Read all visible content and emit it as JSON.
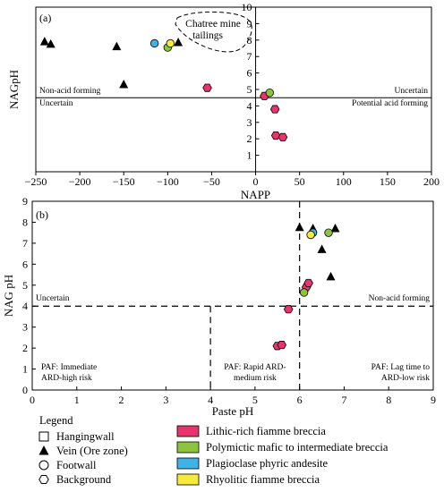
{
  "chart_data": [
    {
      "type": "scatter",
      "panel_label": "(a)",
      "xlabel": "NAPP",
      "ylabel": "NAGpH",
      "xlim": [
        -250,
        200
      ],
      "ylim": [
        0,
        10
      ],
      "xticks": [
        "−250",
        "−200",
        "−150",
        "−100",
        "−50",
        "0",
        "50",
        "100",
        "150",
        "200"
      ],
      "xtick_values": [
        -250,
        -200,
        -150,
        -100,
        -50,
        0,
        50,
        100,
        150,
        200
      ],
      "yticks": [
        "1",
        "2",
        "3",
        "4",
        "5",
        "6",
        "7",
        "8",
        "9",
        "10"
      ],
      "ytick_values": [
        1,
        2,
        3,
        4,
        5,
        6,
        7,
        8,
        9,
        10
      ],
      "grid": false,
      "reference_lines": {
        "x": 0,
        "y": 4.5
      },
      "zone_labels": {
        "top_left": "Non-acid forming",
        "bottom_left": "Uncertain",
        "top_right": "Uncertain",
        "bottom_right": "Potential acid forming"
      },
      "annotation": [
        "Chatree mine",
        "tailings"
      ],
      "series": [
        {
          "lithology": "vein",
          "marker": "triangle",
          "color": "#000000",
          "points": [
            [
              -240,
              7.9
            ],
            [
              -233,
              7.75
            ],
            [
              -158,
              7.6
            ],
            [
              -150,
              5.3
            ],
            [
              -88,
              7.85
            ]
          ]
        },
        {
          "lithology": "lithic",
          "marker": "hexagon",
          "color": "#e8336d",
          "points": [
            [
              -55,
              5.1
            ],
            [
              10,
              4.6
            ],
            [
              22,
              3.8
            ],
            [
              23,
              2.2
            ],
            [
              31,
              2.1
            ]
          ]
        },
        {
          "lithology": "polymictic",
          "marker": "circle",
          "color": "#8cc43f",
          "points": [
            [
              -100,
              7.55
            ],
            [
              16,
              4.8
            ]
          ]
        },
        {
          "lithology": "plagioclase",
          "marker": "circle",
          "color": "#3fb3e5",
          "points": [
            [
              -115,
              7.8
            ]
          ]
        },
        {
          "lithology": "rhyolitic",
          "marker": "circle",
          "color": "#f5ea3c",
          "points": [
            [
              -97,
              7.8
            ]
          ]
        }
      ]
    },
    {
      "type": "scatter",
      "panel_label": "(b)",
      "xlabel": "Paste pH",
      "ylabel": "NAG pH",
      "xlim": [
        0,
        9
      ],
      "ylim": [
        0,
        9
      ],
      "xticks": [
        "0",
        "1",
        "2",
        "3",
        "4",
        "5",
        "6",
        "7",
        "8",
        "9"
      ],
      "xtick_values": [
        0,
        1,
        2,
        3,
        4,
        5,
        6,
        7,
        8,
        9
      ],
      "yticks": [
        "0",
        "1",
        "2",
        "3",
        "4",
        "5",
        "6",
        "7",
        "8",
        "9"
      ],
      "ytick_values": [
        0,
        1,
        2,
        3,
        4,
        5,
        6,
        7,
        8,
        9
      ],
      "grid": false,
      "reference_lines": {
        "x_full": 6,
        "y": 4,
        "x_partial": 4
      },
      "zone_labels": {
        "top_left": "Uncertain",
        "top_right": "Non-acid forming",
        "bottom_left": [
          "PAF: Immediate",
          "ARD-high risk"
        ],
        "bottom_middle": [
          "PAF: Rapid ARD-",
          "medium risk"
        ],
        "bottom_right": [
          "PAF: Lag time to",
          "ARD-low risk"
        ]
      },
      "series": [
        {
          "lithology": "vein",
          "marker": "triangle",
          "color": "#000000",
          "points": [
            [
              6.0,
              7.75
            ],
            [
              6.3,
              7.7
            ],
            [
              6.8,
              7.7
            ],
            [
              6.5,
              6.7
            ],
            [
              6.7,
              5.4
            ]
          ]
        },
        {
          "lithology": "lithic",
          "marker": "hexagon",
          "color": "#e8336d",
          "points": [
            [
              5.75,
              3.85
            ],
            [
              6.15,
              4.9
            ],
            [
              6.2,
              5.1
            ],
            [
              5.5,
              2.1
            ],
            [
              5.6,
              2.15
            ]
          ]
        },
        {
          "lithology": "polymictic",
          "marker": "circle",
          "color": "#8cc43f",
          "points": [
            [
              6.1,
              4.65
            ],
            [
              6.65,
              7.5
            ]
          ]
        },
        {
          "lithology": "plagioclase",
          "marker": "circle",
          "color": "#3fb3e5",
          "points": [
            [
              6.3,
              7.5
            ]
          ]
        },
        {
          "lithology": "rhyolitic",
          "marker": "circle",
          "color": "#f5ea3c",
          "points": [
            [
              6.25,
              7.4
            ]
          ]
        }
      ]
    }
  ],
  "legend": {
    "title": "Legend",
    "symbol_items": [
      {
        "marker": "square",
        "label": "Hangingwall"
      },
      {
        "marker": "triangle",
        "label": "Vein (Ore zone)"
      },
      {
        "marker": "circle",
        "label": "Footwall"
      },
      {
        "marker": "hexagon",
        "label": "Background"
      }
    ],
    "color_items": [
      {
        "color": "#e8336d",
        "label": "Lithic-rich fiamme breccia"
      },
      {
        "color": "#8cc43f",
        "label": "Polymictic mafic to intermediate breccia"
      },
      {
        "color": "#3fb3e5",
        "label": "Plagioclase phyric andesite"
      },
      {
        "color": "#f5ea3c",
        "label": "Rhyolitic fiamme breccia"
      }
    ]
  }
}
